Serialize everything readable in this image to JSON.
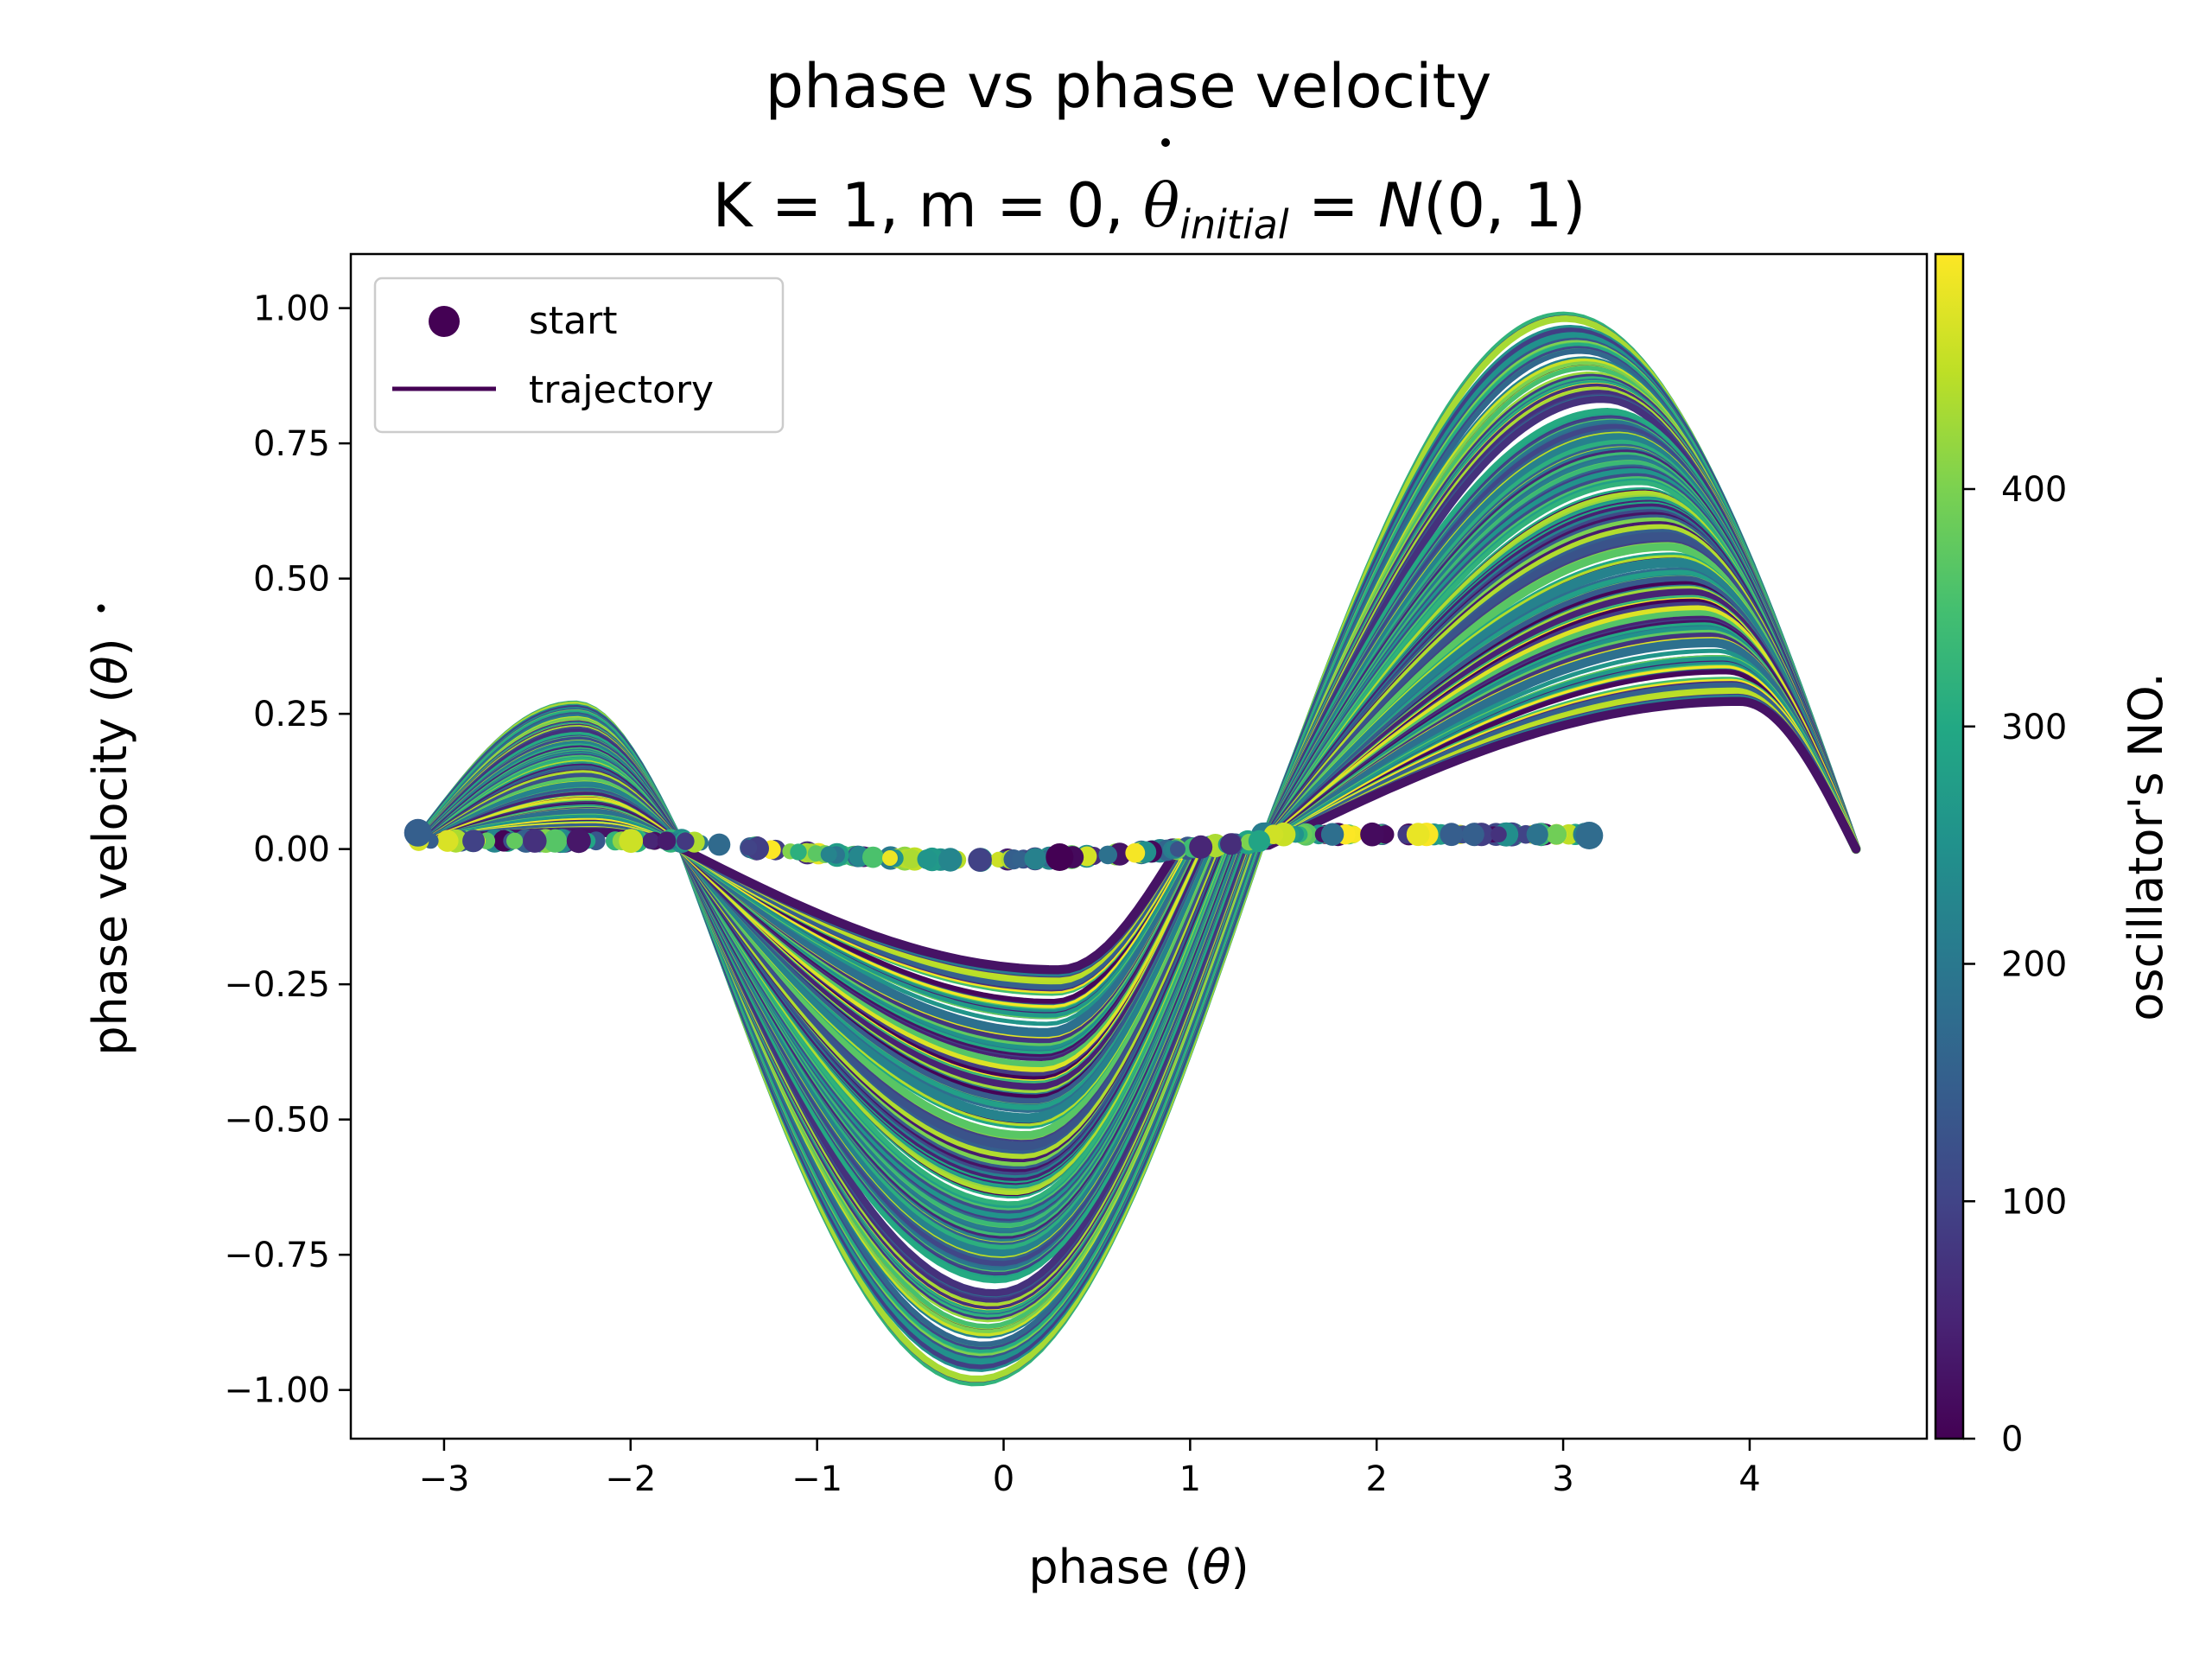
{
  "chart_data": {
    "type": "line",
    "title": "phase vs phase velocity",
    "subtitle": {
      "k_part": "K = 1, m = 0, ",
      "theta": "θ",
      "subscript": "initial",
      "equals": " = ",
      "dist": "N",
      "args": "(0, 1)"
    },
    "xlabel": {
      "text": "phase (",
      "symbol": "θ",
      "close": ")"
    },
    "ylabel": {
      "text": "phase velocity (",
      "symbol": "θ",
      "close": ")"
    },
    "xlim": [
      -3.5,
      4.95
    ],
    "ylim": [
      -1.09,
      1.1
    ],
    "xticks": [
      -3,
      -2,
      -1,
      0,
      1,
      2,
      3,
      4
    ],
    "yticks": [
      1.0,
      0.75,
      0.5,
      0.25,
      0.0,
      -0.25,
      -0.5,
      -0.75,
      -1.0
    ],
    "xtick_labels": [
      "−3",
      "−2",
      "−1",
      "0",
      "1",
      "2",
      "3",
      "4"
    ],
    "ytick_labels": [
      "1.00",
      "0.75",
      "0.50",
      "0.25",
      "0.00",
      "−0.25",
      "−0.50",
      "−0.75",
      "−1.00"
    ],
    "legend": {
      "position": "upper-left",
      "entries": [
        {
          "label": "start",
          "marker": "circle",
          "color": "#440154"
        },
        {
          "label": "trajectory",
          "marker": "line",
          "color": "#440154"
        }
      ]
    },
    "colorbar": {
      "label": "oscillator's NO.",
      "colormap": "viridis",
      "range": [
        0,
        499
      ],
      "ticks": [
        0,
        100,
        200,
        300,
        400
      ],
      "tick_labels": [
        "0",
        "100",
        "200",
        "300",
        "400"
      ]
    },
    "series_summary": {
      "count": 500,
      "description_values": {
        "start_x_range": [
          -3.14,
          3.14
        ],
        "start_y_range": [
          -0.02,
          0.03
        ],
        "max_velocity": 0.99,
        "min_velocity": -0.99,
        "end_x": 4.57,
        "end_y": 0.0
      }
    }
  }
}
